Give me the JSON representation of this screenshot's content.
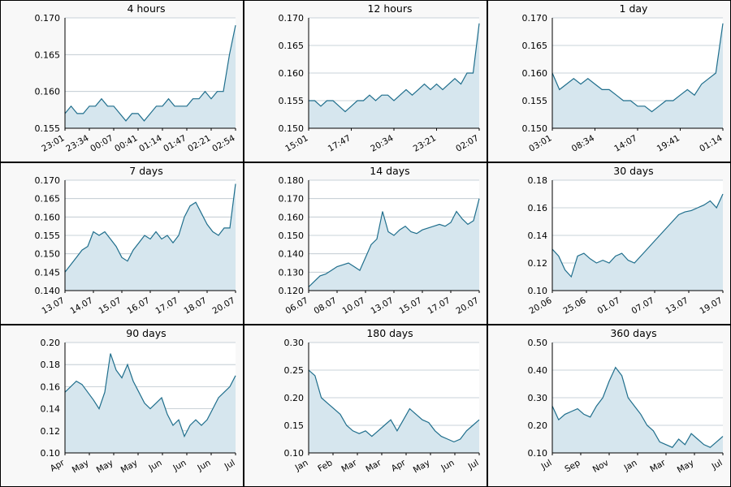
{
  "colors": {
    "line": "#1f6e8c",
    "fill": "#d6e6ee",
    "grid": "#b8c4cc",
    "panel_bg": "#f8f8f8",
    "border": "#000000"
  },
  "chart_data": [
    {
      "type": "area",
      "title": "4 hours",
      "ylim": [
        0.155,
        0.17
      ],
      "yticks": [
        "0.155",
        "0.160",
        "0.165",
        "0.170"
      ],
      "xticks": [
        "23:01",
        "23:34",
        "00:07",
        "00:41",
        "01:14",
        "01:47",
        "02:21",
        "02:54"
      ],
      "series": [
        {
          "values": [
            0.157,
            0.158,
            0.157,
            0.157,
            0.158,
            0.158,
            0.159,
            0.158,
            0.158,
            0.157,
            0.156,
            0.157,
            0.157,
            0.156,
            0.157,
            0.158,
            0.158,
            0.159,
            0.158,
            0.158,
            0.158,
            0.159,
            0.159,
            0.16,
            0.159,
            0.16,
            0.16,
            0.165,
            0.169
          ]
        }
      ]
    },
    {
      "type": "area",
      "title": "12 hours",
      "ylim": [
        0.15,
        0.17
      ],
      "yticks": [
        "0.150",
        "0.155",
        "0.160",
        "0.165",
        "0.170"
      ],
      "xticks": [
        "15:01",
        "17:47",
        "20:34",
        "23:21",
        "02:07"
      ],
      "series": [
        {
          "values": [
            0.155,
            0.155,
            0.154,
            0.155,
            0.155,
            0.154,
            0.153,
            0.154,
            0.155,
            0.155,
            0.156,
            0.155,
            0.156,
            0.156,
            0.155,
            0.156,
            0.157,
            0.156,
            0.157,
            0.158,
            0.157,
            0.158,
            0.157,
            0.158,
            0.159,
            0.158,
            0.16,
            0.16,
            0.169
          ]
        }
      ]
    },
    {
      "type": "area",
      "title": "1 day",
      "ylim": [
        0.15,
        0.17
      ],
      "yticks": [
        "0.150",
        "0.155",
        "0.160",
        "0.165",
        "0.170"
      ],
      "xticks": [
        "03:01",
        "08:34",
        "14:07",
        "19:41",
        "01:14"
      ],
      "series": [
        {
          "values": [
            0.16,
            0.157,
            0.158,
            0.159,
            0.158,
            0.159,
            0.158,
            0.157,
            0.157,
            0.156,
            0.155,
            0.155,
            0.154,
            0.154,
            0.153,
            0.154,
            0.155,
            0.155,
            0.156,
            0.157,
            0.156,
            0.158,
            0.159,
            0.16,
            0.169
          ]
        }
      ]
    },
    {
      "type": "area",
      "title": "7 days",
      "ylim": [
        0.14,
        0.17
      ],
      "yticks": [
        "0.140",
        "0.145",
        "0.150",
        "0.155",
        "0.160",
        "0.165",
        "0.170"
      ],
      "xticks": [
        "13.07",
        "14.07",
        "15.07",
        "16.07",
        "17.07",
        "18.07",
        "20.07"
      ],
      "series": [
        {
          "values": [
            0.145,
            0.147,
            0.149,
            0.151,
            0.152,
            0.156,
            0.155,
            0.156,
            0.154,
            0.152,
            0.149,
            0.148,
            0.151,
            0.153,
            0.155,
            0.154,
            0.156,
            0.154,
            0.155,
            0.153,
            0.155,
            0.16,
            0.163,
            0.164,
            0.161,
            0.158,
            0.156,
            0.155,
            0.157,
            0.157,
            0.169
          ]
        }
      ]
    },
    {
      "type": "area",
      "title": "14 days",
      "ylim": [
        0.12,
        0.18
      ],
      "yticks": [
        "0.120",
        "0.130",
        "0.140",
        "0.150",
        "0.160",
        "0.170",
        "0.180"
      ],
      "xticks": [
        "06.07",
        "08.07",
        "10.07",
        "13.07",
        "15.07",
        "17.07",
        "20.07"
      ],
      "series": [
        {
          "values": [
            0.122,
            0.125,
            0.128,
            0.129,
            0.131,
            0.133,
            0.134,
            0.135,
            0.133,
            0.131,
            0.138,
            0.145,
            0.148,
            0.163,
            0.152,
            0.15,
            0.153,
            0.155,
            0.152,
            0.151,
            0.153,
            0.154,
            0.155,
            0.156,
            0.155,
            0.157,
            0.163,
            0.159,
            0.156,
            0.158,
            0.17
          ]
        }
      ]
    },
    {
      "type": "area",
      "title": "30 days",
      "ylim": [
        0.1,
        0.18
      ],
      "yticks": [
        "0.10",
        "0.12",
        "0.14",
        "0.16",
        "0.18"
      ],
      "xticks": [
        "20.06",
        "25.06",
        "01.07",
        "07.07",
        "13.07",
        "19.07"
      ],
      "series": [
        {
          "values": [
            0.13,
            0.125,
            0.115,
            0.11,
            0.125,
            0.127,
            0.123,
            0.12,
            0.122,
            0.12,
            0.125,
            0.127,
            0.122,
            0.12,
            0.125,
            0.13,
            0.135,
            0.14,
            0.145,
            0.15,
            0.155,
            0.157,
            0.158,
            0.16,
            0.162,
            0.165,
            0.16,
            0.17
          ]
        }
      ]
    },
    {
      "type": "area",
      "title": "90 days",
      "ylim": [
        0.1,
        0.2
      ],
      "yticks": [
        "0.10",
        "0.12",
        "0.14",
        "0.16",
        "0.18",
        "0.20"
      ],
      "xticks": [
        "Apr",
        "May",
        "May",
        "May",
        "Jun",
        "Jun",
        "Jun",
        "Jul"
      ],
      "series": [
        {
          "values": [
            0.155,
            0.16,
            0.165,
            0.162,
            0.155,
            0.148,
            0.14,
            0.155,
            0.19,
            0.175,
            0.168,
            0.18,
            0.165,
            0.155,
            0.145,
            0.14,
            0.145,
            0.15,
            0.135,
            0.125,
            0.13,
            0.115,
            0.125,
            0.13,
            0.125,
            0.13,
            0.14,
            0.15,
            0.155,
            0.16,
            0.17
          ]
        }
      ]
    },
    {
      "type": "area",
      "title": "180 days",
      "ylim": [
        0.1,
        0.3
      ],
      "yticks": [
        "0.10",
        "0.15",
        "0.20",
        "0.25",
        "0.30"
      ],
      "xticks": [
        "Jan",
        "Feb",
        "Mar",
        "Mar",
        "Apr",
        "May",
        "Jun",
        "Jul"
      ],
      "series": [
        {
          "values": [
            0.25,
            0.24,
            0.2,
            0.19,
            0.18,
            0.17,
            0.15,
            0.14,
            0.135,
            0.14,
            0.13,
            0.14,
            0.15,
            0.16,
            0.14,
            0.16,
            0.18,
            0.17,
            0.16,
            0.155,
            0.14,
            0.13,
            0.125,
            0.12,
            0.125,
            0.14,
            0.15,
            0.16
          ]
        }
      ]
    },
    {
      "type": "area",
      "title": "360 days",
      "ylim": [
        0.1,
        0.5
      ],
      "yticks": [
        "0.10",
        "0.20",
        "0.30",
        "0.40",
        "0.50"
      ],
      "xticks": [
        "Jul",
        "Sep",
        "Nov",
        "Jan",
        "Mar",
        "May",
        "Jul"
      ],
      "series": [
        {
          "values": [
            0.27,
            0.22,
            0.24,
            0.25,
            0.26,
            0.24,
            0.23,
            0.27,
            0.3,
            0.36,
            0.41,
            0.38,
            0.3,
            0.27,
            0.24,
            0.2,
            0.18,
            0.14,
            0.13,
            0.12,
            0.15,
            0.13,
            0.17,
            0.15,
            0.13,
            0.12,
            0.14,
            0.16
          ]
        }
      ]
    }
  ]
}
